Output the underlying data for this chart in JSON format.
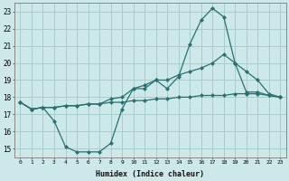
{
  "xlabel": "Humidex (Indice chaleur)",
  "bg_color": "#cce8e8",
  "grid_color": "#aacccc",
  "line_color": "#2a7070",
  "x": [
    0,
    1,
    2,
    3,
    4,
    5,
    6,
    7,
    8,
    9,
    10,
    11,
    12,
    13,
    14,
    15,
    16,
    17,
    18,
    19,
    20,
    21,
    22,
    23
  ],
  "curve_flat": [
    17.7,
    17.3,
    17.4,
    17.4,
    17.5,
    17.5,
    17.6,
    17.6,
    17.7,
    17.7,
    17.8,
    17.8,
    17.9,
    17.9,
    18.0,
    18.0,
    18.1,
    18.1,
    18.1,
    18.2,
    18.2,
    18.2,
    18.1,
    18.0
  ],
  "curve_mid": [
    17.7,
    17.3,
    17.4,
    17.4,
    17.5,
    17.5,
    17.6,
    17.6,
    17.9,
    18.0,
    18.5,
    18.7,
    19.0,
    19.0,
    19.3,
    19.5,
    19.7,
    20.0,
    20.5,
    20.0,
    19.5,
    19.0,
    18.2,
    18.0
  ],
  "curve_jagged": [
    17.7,
    17.3,
    17.4,
    16.6,
    15.1,
    14.8,
    14.8,
    14.8,
    15.3,
    17.3,
    18.5,
    18.5,
    19.0,
    18.5,
    19.2,
    21.1,
    22.5,
    23.2,
    22.7,
    20.0,
    18.3,
    18.3,
    18.1,
    18.0
  ],
  "ylim": [
    14.5,
    23.5
  ],
  "yticks": [
    15,
    16,
    17,
    18,
    19,
    20,
    21,
    22,
    23
  ],
  "xticks": [
    0,
    1,
    2,
    3,
    4,
    5,
    6,
    7,
    8,
    9,
    10,
    11,
    12,
    13,
    14,
    15,
    16,
    17,
    18,
    19,
    20,
    21,
    22,
    23
  ]
}
